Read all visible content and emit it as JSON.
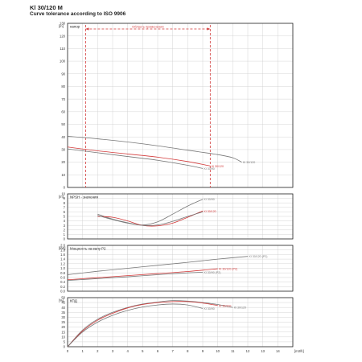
{
  "header": {
    "model": "Kl 30/120 M",
    "tolerance": "Curve tolerance according to ISO 9906"
  },
  "colors": {
    "black": "#777777",
    "red": "#d33a3a",
    "grid": "#cccccc",
    "frame": "#222222"
  },
  "chart_data": [
    {
      "type": "line",
      "id": "head",
      "title": "напор",
      "ylabel": "[m]",
      "xlim": [
        0,
        15
      ],
      "ylim": [
        0,
        130
      ],
      "y_ticks": [
        0,
        10,
        20,
        30,
        40,
        50,
        60,
        70,
        80,
        90,
        100,
        110,
        120,
        130
      ],
      "grid": true,
      "annotation": {
        "label": "Область применения",
        "x_range": [
          1.2,
          9.5
        ]
      },
      "series": [
        {
          "name": "Kl 30/120",
          "color": "black",
          "x": [
            0,
            2,
            4,
            6,
            8,
            10,
            11,
            11.6
          ],
          "y": [
            40.5,
            38.5,
            36,
            33,
            29.5,
            26,
            23.5,
            20
          ]
        },
        {
          "name": "Kl 30/90",
          "color": "black",
          "x": [
            0,
            2,
            4,
            6,
            8,
            9
          ],
          "y": [
            30.5,
            27.5,
            24.5,
            21.5,
            17.5,
            15
          ]
        },
        {
          "name": "Kl 30/120",
          "color": "red",
          "x": [
            0,
            2,
            4,
            6,
            8,
            9.5
          ],
          "y": [
            32,
            29,
            26.5,
            24,
            20.5,
            17
          ]
        }
      ]
    },
    {
      "type": "line",
      "id": "npsh",
      "title": "NPSH - значения",
      "ylabel": "[m]",
      "xlim": [
        0,
        15
      ],
      "ylim": [
        0,
        10
      ],
      "y_ticks": [
        0,
        1,
        2,
        3,
        4,
        5,
        6,
        7,
        8,
        9,
        10
      ],
      "grid": true,
      "series": [
        {
          "name": "Kl 30/90",
          "color": "black",
          "x": [
            2,
            3,
            4,
            5,
            6,
            7,
            8,
            9
          ],
          "y": [
            5.5,
            4.4,
            3.6,
            3.1,
            3.8,
            5.5,
            7.3,
            8.8
          ]
        },
        {
          "name": "Kl 30/120",
          "color": "red",
          "x": [
            2,
            3,
            4,
            5,
            6,
            7,
            8,
            9
          ],
          "y": [
            5,
            4.8,
            4,
            3,
            2.9,
            3.5,
            4.8,
            6.2
          ]
        },
        {
          "name": "",
          "color": "black",
          "x": [
            2,
            3,
            4,
            5,
            6,
            7,
            8,
            9
          ],
          "y": [
            5.2,
            4.3,
            3.5,
            3.0,
            3.1,
            3.9,
            5.0,
            6.0
          ]
        }
      ]
    },
    {
      "type": "line",
      "id": "power",
      "title": "Мощность на валу P2",
      "ylabel": "[kW]",
      "xlim": [
        0,
        15
      ],
      "ylim": [
        0,
        2
      ],
      "y_ticks": [
        "0.0",
        "0.2",
        "0.4",
        "0.6",
        "0.8",
        "1.0",
        "1.2",
        "1.4",
        "1.6",
        "1.8",
        "2.0"
      ],
      "grid": true,
      "series": [
        {
          "name": "Kl 30/120 (P2)",
          "color": "black",
          "x": [
            0,
            2,
            4,
            6,
            8,
            10,
            12
          ],
          "y": [
            0.72,
            0.87,
            1.0,
            1.13,
            1.26,
            1.4,
            1.52
          ]
        },
        {
          "name": "Kl 30/120 (P2)",
          "color": "red",
          "x": [
            0,
            2,
            4,
            6,
            8,
            10
          ],
          "y": [
            0.5,
            0.59,
            0.68,
            0.77,
            0.86,
            0.98
          ]
        },
        {
          "name": "Kl 30/90 (P2)",
          "color": "black",
          "x": [
            0,
            2,
            4,
            6,
            8,
            9
          ],
          "y": [
            0.47,
            0.55,
            0.63,
            0.72,
            0.8,
            0.83
          ]
        }
      ]
    },
    {
      "type": "line",
      "id": "efficiency",
      "title": "КПД",
      "ylabel": "[%]",
      "xlabel": "[m3/h]",
      "xlim": [
        0,
        15
      ],
      "ylim": [
        0,
        50
      ],
      "x_ticks": [
        0,
        1,
        2,
        3,
        4,
        5,
        6,
        7,
        8,
        9,
        10,
        11,
        12,
        13,
        14
      ],
      "y_ticks": [
        0,
        5,
        10,
        15,
        20,
        25,
        30,
        35,
        40,
        45,
        50
      ],
      "grid": true,
      "series": [
        {
          "name": "Kl 30/120",
          "color": "black",
          "x": [
            0,
            1,
            2,
            3,
            4,
            5,
            6,
            7,
            8,
            9,
            10,
            11
          ],
          "y": [
            0,
            17,
            28,
            35,
            40,
            43.5,
            45.5,
            47,
            46.5,
            45,
            43,
            40
          ]
        },
        {
          "name": "Kl 30/120",
          "color": "red",
          "x": [
            0,
            1,
            2,
            3,
            4,
            5,
            6,
            7,
            8,
            9,
            10
          ],
          "y": [
            0,
            16,
            27,
            34,
            39.5,
            43,
            45,
            46,
            46,
            44.5,
            42
          ]
        },
        {
          "name": "Kl 30/90",
          "color": "black",
          "x": [
            0,
            1,
            2,
            3,
            4,
            5,
            6,
            7,
            8,
            9
          ],
          "y": [
            0,
            15,
            25,
            32,
            37,
            40.5,
            42.5,
            43.5,
            42.5,
            39
          ]
        }
      ]
    }
  ]
}
